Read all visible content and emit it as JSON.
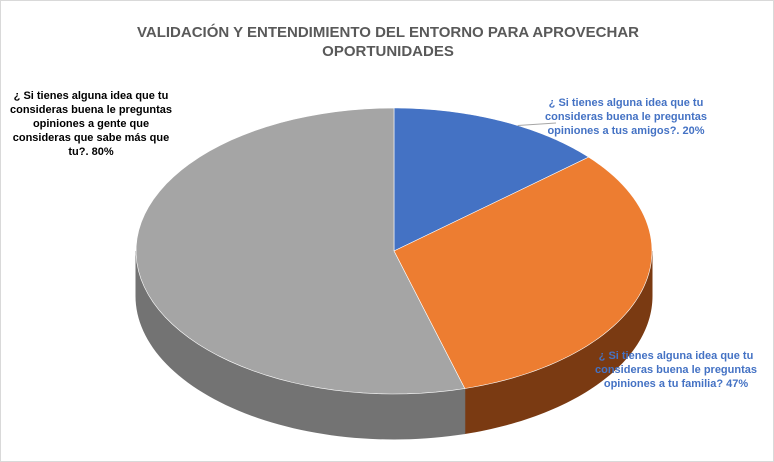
{
  "chart_data": {
    "type": "pie3d",
    "title": "VALIDACIÓN Y ENTENDIMIENTO DEL ENTORNO PARA APROVECHAR OPORTUNIDADES",
    "values": [
      20,
      47,
      80
    ],
    "value_labels": [
      "¿ Si tienes alguna idea que tu consideras buena le preguntas opiniones a tus amigos?. 20%",
      "¿ Si tienes alguna idea que tu consideras buena le preguntas opiniones a tu familia? 47%",
      "¿ Si tienes alguna idea que tu consideras buena le preguntas opiniones a gente que consideras que sabe más que tu?. 80%"
    ],
    "colors": [
      "#4472c4",
      "#ed7d31",
      "#a5a5a5"
    ],
    "side_colors": [
      "#2f528f",
      "#7a3a12",
      "#737373"
    ],
    "label_colors": [
      "#4472c4",
      "#4472c4",
      "#000000"
    ]
  }
}
